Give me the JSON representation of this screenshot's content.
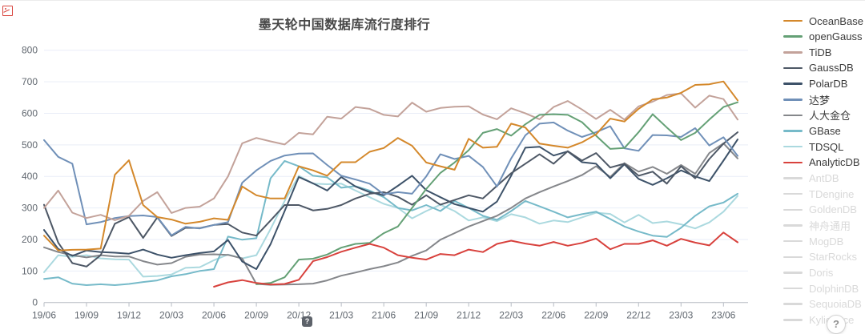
{
  "page": {
    "title": "墨天轮中国数据库流行度排行"
  },
  "help_button": {
    "label": "?"
  },
  "shortcut_badge": {
    "label": "?"
  },
  "colors": {
    "grid": "#e9eef8",
    "axis_line": "#b7bcc4",
    "tick_label": "#60676f",
    "title": "#474747",
    "legend_inactive": "#d9d9d9",
    "legend_active_text": "#3a3a3a"
  },
  "chart_data": {
    "type": "line",
    "title": "墨天轮中国数据库流行度排行",
    "xlabel": "",
    "ylabel": "",
    "ylim": [
      0,
      800
    ],
    "yticks": [
      0,
      100,
      200,
      300,
      400,
      500,
      600,
      700,
      800
    ],
    "grid": true,
    "legend_position": "right",
    "x_tick_labels": [
      "19/06",
      "19/09",
      "19/12",
      "20/03",
      "20/06",
      "20/09",
      "20/12",
      "21/03",
      "21/06",
      "21/09",
      "21/12",
      "22/03",
      "22/06",
      "22/09",
      "22/12",
      "23/03",
      "23/06"
    ],
    "months": [
      "19/06",
      "19/07",
      "19/08",
      "19/09",
      "19/10",
      "19/11",
      "19/12",
      "20/01",
      "20/02",
      "20/03",
      "20/04",
      "20/05",
      "20/06",
      "20/07",
      "20/08",
      "20/09",
      "20/10",
      "20/11",
      "20/12",
      "21/01",
      "21/02",
      "21/03",
      "21/04",
      "21/05",
      "21/06",
      "21/07",
      "21/08",
      "21/09",
      "21/10",
      "21/11",
      "21/12",
      "22/01",
      "22/02",
      "22/03",
      "22/04",
      "22/05",
      "22/06",
      "22/07",
      "22/08",
      "22/09",
      "22/10",
      "22/11",
      "22/12",
      "23/01",
      "23/02",
      "23/03",
      "23/04",
      "23/05",
      "23/06",
      "23/07"
    ],
    "series": [
      {
        "name": "OceanBase",
        "color": "#d4882b",
        "active": true,
        "values": [
          212,
          165,
          167,
          168,
          171,
          405,
          451,
          309,
          271,
          263,
          250,
          256,
          267,
          262,
          368,
          340,
          330,
          330,
          432,
          419,
          402,
          445,
          445,
          478,
          490,
          522,
          497,
          444,
          432,
          421,
          519,
          491,
          494,
          567,
          555,
          504,
          497,
          491,
          508,
          533,
          583,
          574,
          614,
          644,
          650,
          665,
          690,
          692,
          701,
          641
        ]
      },
      {
        "name": "openGauss",
        "color": "#64a075",
        "active": true,
        "values": [
          null,
          null,
          null,
          null,
          null,
          null,
          null,
          null,
          null,
          null,
          null,
          null,
          null,
          null,
          null,
          58,
          62,
          80,
          136,
          139,
          152,
          174,
          186,
          189,
          220,
          241,
          300,
          360,
          411,
          444,
          483,
          538,
          550,
          529,
          565,
          595,
          597,
          595,
          572,
          529,
          487,
          490,
          540,
          597,
          555,
          515,
          538,
          580,
          620,
          635
        ]
      },
      {
        "name": "TiDB",
        "color": "#c3a29a",
        "active": true,
        "values": [
          300,
          355,
          285,
          268,
          278,
          261,
          275,
          322,
          350,
          284,
          300,
          304,
          330,
          400,
          505,
          522,
          511,
          501,
          538,
          533,
          589,
          583,
          620,
          614,
          595,
          590,
          634,
          605,
          617,
          621,
          622,
          596,
          581,
          616,
          600,
          581,
          620,
          639,
          612,
          582,
          611,
          580,
          622,
          637,
          658,
          663,
          618,
          656,
          645,
          580
        ]
      },
      {
        "name": "GaussDB",
        "color": "#4e5866",
        "active": true,
        "values": [
          310,
          190,
          125,
          114,
          150,
          250,
          271,
          205,
          270,
          211,
          237,
          236,
          246,
          249,
          222,
          212,
          260,
          309,
          309,
          292,
          297,
          309,
          330,
          345,
          350,
          335,
          310,
          340,
          310,
          325,
          340,
          330,
          370,
          410,
          440,
          470,
          440,
          480,
          450,
          474,
          428,
          440,
          402,
          415,
          377,
          432,
          394,
          455,
          504,
          540
        ]
      },
      {
        "name": "PolarDB",
        "color": "#3d5269",
        "active": true,
        "values": [
          230,
          170,
          148,
          165,
          160,
          158,
          155,
          168,
          152,
          142,
          150,
          157,
          162,
          198,
          130,
          106,
          185,
          290,
          398,
          378,
          355,
          398,
          368,
          350,
          340,
          370,
          402,
          356,
          334,
          312,
          300,
          288,
          320,
          402,
          491,
          494,
          466,
          479,
          445,
          440,
          394,
          438,
          392,
          373,
          394,
          419,
          400,
          385,
          450,
          517
        ]
      },
      {
        "name": "达梦",
        "color": "#7090b8",
        "active": true,
        "values": [
          515,
          462,
          440,
          248,
          255,
          268,
          274,
          276,
          271,
          213,
          240,
          235,
          246,
          255,
          380,
          419,
          449,
          466,
          472,
          473,
          436,
          402,
          390,
          377,
          343,
          350,
          345,
          400,
          470,
          455,
          465,
          430,
          368,
          457,
          530,
          567,
          571,
          545,
          525,
          540,
          559,
          489,
          481,
          531,
          530,
          525,
          553,
          498,
          524,
          465
        ]
      },
      {
        "name": "人大金仓",
        "color": "#85878b",
        "active": true,
        "values": [
          175,
          160,
          150,
          143,
          150,
          146,
          146,
          131,
          120,
          125,
          145,
          152,
          153,
          151,
          140,
          59,
          56,
          57,
          58,
          60,
          70,
          85,
          95,
          106,
          115,
          127,
          148,
          165,
          199,
          220,
          241,
          258,
          275,
          300,
          330,
          350,
          368,
          385,
          404,
          432,
          398,
          442,
          415,
          430,
          408,
          436,
          408,
          474,
          505,
          457
        ]
      },
      {
        "name": "GBase",
        "color": "#76bac9",
        "active": true,
        "values": [
          75,
          80,
          60,
          55,
          58,
          55,
          59,
          65,
          70,
          83,
          90,
          100,
          106,
          209,
          199,
          204,
          394,
          449,
          432,
          402,
          397,
          364,
          369,
          355,
          334,
          300,
          292,
          309,
          290,
          322,
          300,
          275,
          262,
          290,
          322,
          305,
          288,
          270,
          280,
          288,
          265,
          241,
          225,
          212,
          208,
          237,
          275,
          305,
          317,
          345
        ]
      },
      {
        "name": "TDSQL",
        "color": "#abd9df",
        "active": true,
        "values": [
          96,
          150,
          145,
          150,
          140,
          137,
          136,
          82,
          84,
          89,
          110,
          112,
          134,
          152,
          140,
          150,
          233,
          322,
          402,
          377,
          375,
          377,
          355,
          334,
          313,
          300,
          267,
          290,
          310,
          290,
          260,
          270,
          258,
          280,
          270,
          250,
          260,
          255,
          270,
          285,
          281,
          254,
          278,
          252,
          257,
          248,
          235,
          254,
          288,
          338
        ]
      },
      {
        "name": "AnalyticDB",
        "color": "#d8423d",
        "active": true,
        "values": [
          null,
          null,
          null,
          null,
          null,
          null,
          null,
          null,
          null,
          null,
          null,
          null,
          50,
          64,
          71,
          62,
          57,
          59,
          72,
          131,
          144,
          161,
          174,
          186,
          174,
          150,
          142,
          136,
          154,
          150,
          168,
          160,
          186,
          196,
          187,
          180,
          192,
          180,
          189,
          203,
          169,
          186,
          186,
          197,
          180,
          202,
          190,
          181,
          222,
          191
        ]
      },
      {
        "name": "AntDB",
        "color": "#d9d9d9",
        "active": false,
        "values": []
      },
      {
        "name": "TDengine",
        "color": "#d9d9d9",
        "active": false,
        "values": []
      },
      {
        "name": "GoldenDB",
        "color": "#d9d9d9",
        "active": false,
        "values": []
      },
      {
        "name": "神舟通用",
        "color": "#d9d9d9",
        "active": false,
        "values": []
      },
      {
        "name": "MogDB",
        "color": "#d9d9d9",
        "active": false,
        "values": []
      },
      {
        "name": "StarRocks",
        "color": "#d9d9d9",
        "active": false,
        "values": []
      },
      {
        "name": "Doris",
        "color": "#d9d9d9",
        "active": false,
        "values": []
      },
      {
        "name": "DolphinDB",
        "color": "#d9d9d9",
        "active": false,
        "values": []
      },
      {
        "name": "SequoiaDB",
        "color": "#d9d9d9",
        "active": false,
        "values": []
      },
      {
        "name": "Kyligence",
        "color": "#d9d9d9",
        "active": false,
        "values": []
      }
    ]
  }
}
